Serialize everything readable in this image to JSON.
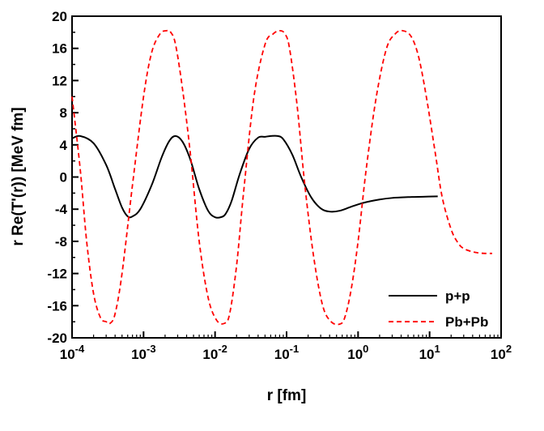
{
  "chart_data": {
    "type": "line",
    "title": "",
    "xlabel": "r [fm]",
    "ylabel": "r Re(T'(r))  [MeV fm]",
    "xscale": "log",
    "xlim": [
      0.0001,
      100
    ],
    "ylim": [
      -20,
      20
    ],
    "yticks": [
      -20,
      -16,
      -12,
      -8,
      -4,
      0,
      4,
      8,
      12,
      16,
      20
    ],
    "xtick_exponents": [
      "-4",
      "-3",
      "-2",
      "-1",
      "0",
      "1",
      "2"
    ],
    "xtick_base": "10",
    "grid": false,
    "legend_position": "bottom-right",
    "series": [
      {
        "name": "p+p",
        "color": "#000000",
        "style": "solid",
        "x": [
          0.0001,
          0.00013,
          0.0002,
          0.0003,
          0.0004,
          0.0005,
          0.0006,
          0.0007,
          0.0009,
          0.0013,
          0.0018,
          0.0023,
          0.0028,
          0.0035,
          0.0045,
          0.006,
          0.008,
          0.01,
          0.012,
          0.014,
          0.017,
          0.022,
          0.03,
          0.04,
          0.05,
          0.06,
          0.075,
          0.09,
          0.12,
          0.16,
          0.22,
          0.3,
          0.4,
          0.55,
          0.8,
          1.2,
          2,
          3,
          5,
          8,
          13
        ],
        "y": [
          4.8,
          5.1,
          4.2,
          1.5,
          -1.5,
          -3.8,
          -4.9,
          -4.9,
          -4.0,
          -1.0,
          2.5,
          4.5,
          5.1,
          4.4,
          2.2,
          -1.5,
          -4.2,
          -5.0,
          -5.0,
          -4.6,
          -3.0,
          0.3,
          3.5,
          4.9,
          5.0,
          5.1,
          5.1,
          4.7,
          2.8,
          0.0,
          -2.5,
          -3.9,
          -4.3,
          -4.2,
          -3.7,
          -3.2,
          -2.8,
          -2.6,
          -2.5,
          -2.45,
          -2.4
        ]
      },
      {
        "name": "Pb+Pb",
        "color": "#ff0000",
        "style": "dashed",
        "x": [
          0.0001,
          0.00013,
          0.00016,
          0.0002,
          0.00025,
          0.0003,
          0.00034,
          0.0004,
          0.0005,
          0.0007,
          0.001,
          0.0013,
          0.0017,
          0.0021,
          0.0024,
          0.0028,
          0.0035,
          0.0045,
          0.006,
          0.008,
          0.0105,
          0.0135,
          0.016,
          0.02,
          0.025,
          0.035,
          0.05,
          0.065,
          0.08,
          0.095,
          0.11,
          0.14,
          0.18,
          0.24,
          0.32,
          0.42,
          0.55,
          0.65,
          0.8,
          1.0,
          1.3,
          1.8,
          2.5,
          3.3,
          4.2,
          5.5,
          7,
          9,
          12,
          15,
          20,
          25,
          30,
          40,
          50,
          60,
          75
        ],
        "y": [
          10.0,
          1.0,
          -8.0,
          -14.5,
          -17.5,
          -18.0,
          -18.2,
          -17.0,
          -12.0,
          -1.0,
          10.0,
          15.5,
          17.8,
          18.2,
          18.0,
          16.5,
          11.0,
          3.0,
          -8.0,
          -15.0,
          -17.8,
          -18.2,
          -17.0,
          -11.0,
          -2.0,
          10.0,
          16.5,
          17.8,
          18.2,
          17.8,
          16.0,
          9.0,
          -1.0,
          -10.0,
          -16.0,
          -18.0,
          -18.3,
          -17.5,
          -14.0,
          -8.0,
          1.0,
          10.0,
          16.0,
          17.8,
          18.2,
          17.5,
          15.0,
          10.0,
          3.0,
          -2.5,
          -6.5,
          -8.2,
          -8.9,
          -9.3,
          -9.45,
          -9.5,
          -9.5
        ]
      }
    ]
  }
}
